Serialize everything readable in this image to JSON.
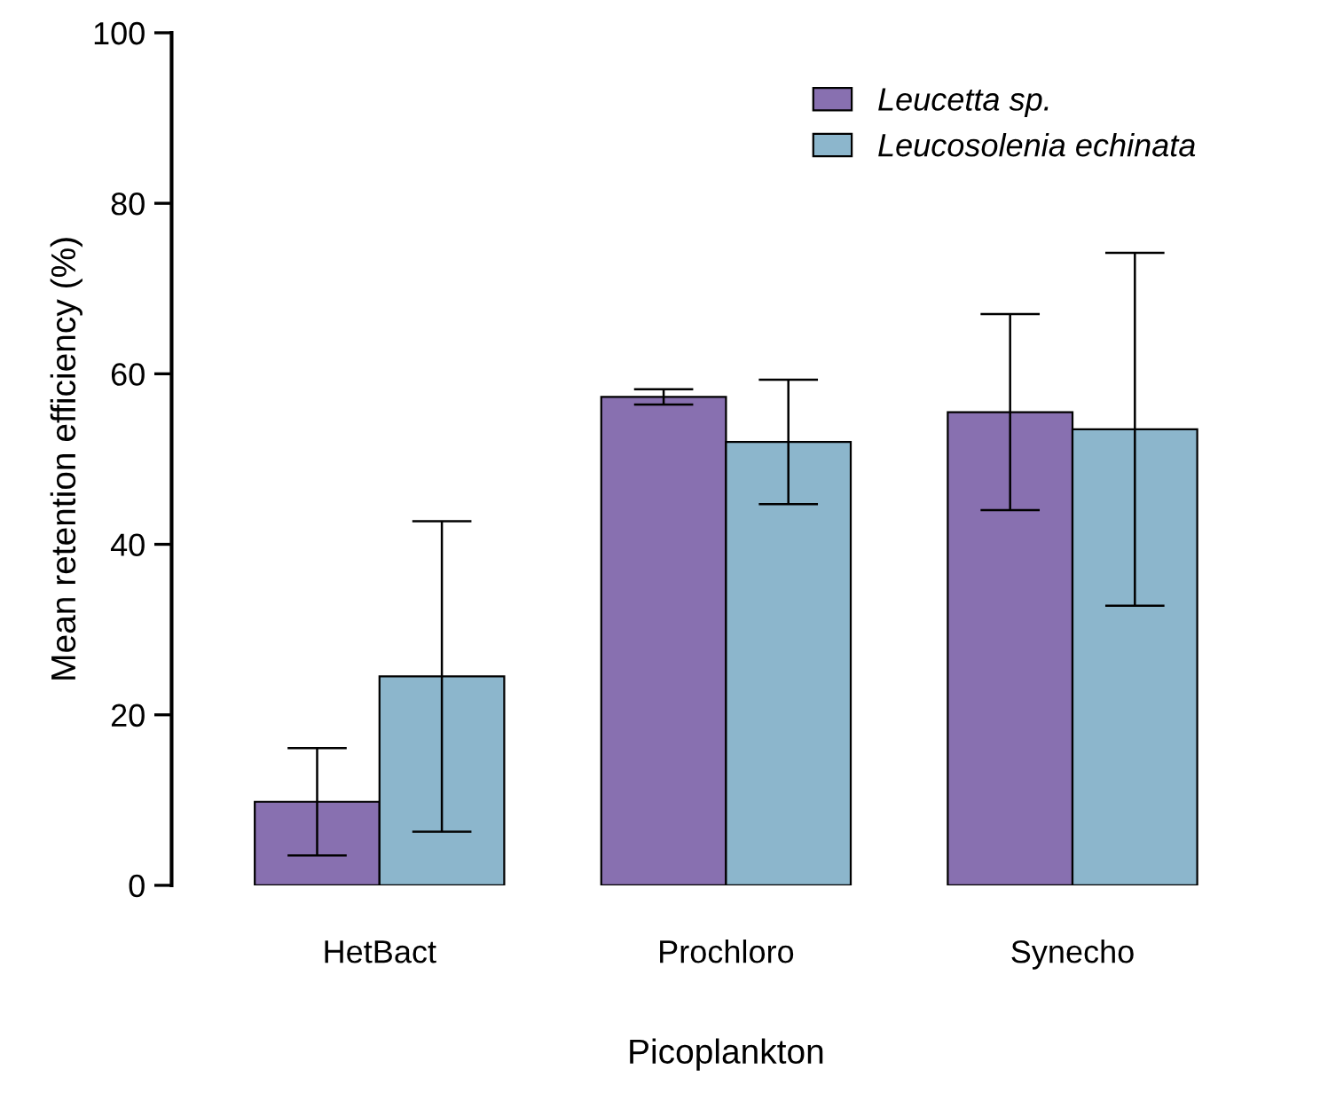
{
  "chart_data": {
    "type": "bar",
    "xlabel": "Picoplankton",
    "ylabel": "Mean retention efficiency (%)",
    "categories": [
      "HetBact",
      "Prochloro",
      "Synecho"
    ],
    "series": [
      {
        "name": "Leucetta sp.",
        "color": "#8870b0",
        "values": [
          9.8,
          57.3,
          55.5
        ],
        "errors": [
          6.3,
          0.9,
          11.5
        ]
      },
      {
        "name": "Leucosolenia echinata",
        "color": "#8cb6cc",
        "values": [
          24.5,
          52,
          53.5
        ],
        "errors": [
          18.2,
          7.3,
          20.7
        ]
      }
    ],
    "ylim": [
      0,
      100
    ],
    "yticks": [
      0,
      20,
      40,
      60,
      80,
      100
    ],
    "grid": false,
    "legend": "top right"
  }
}
